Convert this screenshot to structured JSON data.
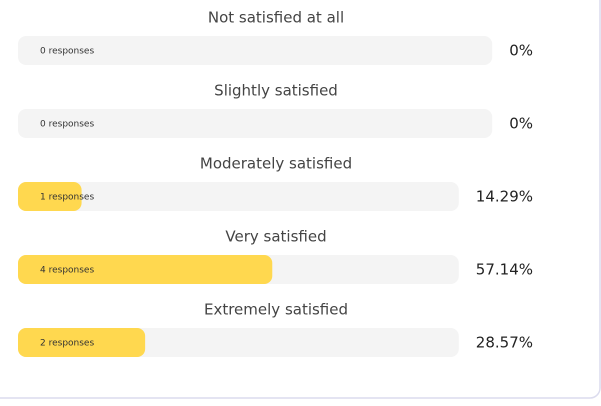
{
  "chart_data": {
    "type": "bar",
    "categories": [
      "Not satisfied at all",
      "Slightly satisfied",
      "Moderately satisfied",
      "Very satisfied",
      "Extremely satisfied"
    ],
    "values": [
      0,
      0,
      14.29,
      57.14,
      28.57
    ],
    "value_labels": [
      "0%",
      "0%",
      "14.29%",
      "57.14%",
      "28.57%"
    ],
    "response_labels": [
      "0 responses",
      "0 responses",
      "1 responses",
      "4 responses",
      "2 responses"
    ],
    "xlim": [
      0,
      100
    ],
    "color": "#ffd84f",
    "track_color": "#f4f4f4"
  }
}
